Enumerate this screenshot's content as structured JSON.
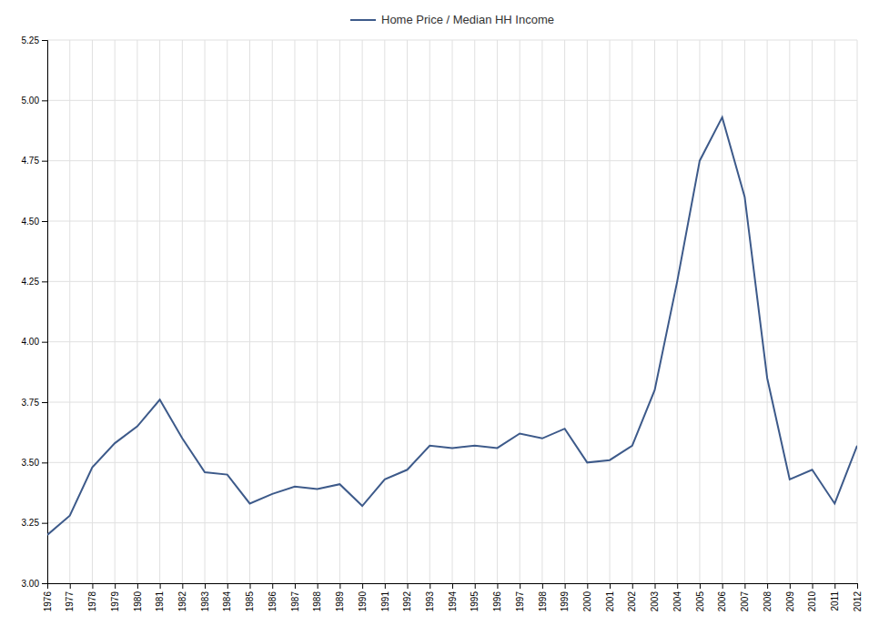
{
  "chart_data": {
    "type": "line",
    "x": [
      1976,
      1977,
      1978,
      1979,
      1980,
      1981,
      1982,
      1983,
      1984,
      1985,
      1986,
      1987,
      1988,
      1989,
      1990,
      1991,
      1992,
      1993,
      1994,
      1995,
      1996,
      1997,
      1998,
      1999,
      2000,
      2001,
      2002,
      2003,
      2004,
      2005,
      2006,
      2007,
      2008,
      2009,
      2010,
      2011,
      2012
    ],
    "series": [
      {
        "name": "Home Price / Median HH Income",
        "color": "#3d5a8a",
        "values": [
          3.2,
          3.28,
          3.48,
          3.58,
          3.65,
          3.76,
          3.6,
          3.46,
          3.45,
          3.33,
          3.37,
          3.4,
          3.39,
          3.41,
          3.32,
          3.43,
          3.47,
          3.57,
          3.56,
          3.57,
          3.56,
          3.62,
          3.6,
          3.64,
          3.5,
          3.51,
          3.57,
          3.8,
          4.25,
          4.75,
          4.93,
          4.6,
          3.85,
          3.43,
          3.47,
          3.33,
          3.57
        ]
      }
    ],
    "xlim": [
      1976,
      2012
    ],
    "ylim": [
      3.0,
      5.25
    ],
    "xticks": [
      1976,
      1977,
      1978,
      1979,
      1980,
      1981,
      1982,
      1983,
      1984,
      1985,
      1986,
      1987,
      1988,
      1989,
      1990,
      1991,
      1992,
      1993,
      1994,
      1995,
      1996,
      1997,
      1998,
      1999,
      2000,
      2001,
      2002,
      2003,
      2004,
      2005,
      2006,
      2007,
      2008,
      2009,
      2010,
      2011,
      2012
    ],
    "yticks": [
      {
        "value": 3.0,
        "label": "3.00"
      },
      {
        "value": 3.25,
        "label": "3.25"
      },
      {
        "value": 3.5,
        "label": "3.50"
      },
      {
        "value": 3.75,
        "label": "3.75"
      },
      {
        "value": 4.0,
        "label": "4.00"
      },
      {
        "value": 4.25,
        "label": "4.25"
      },
      {
        "value": 4.5,
        "label": "4.50"
      },
      {
        "value": 4.75,
        "label": "4.75"
      },
      {
        "value": 5.0,
        "label": "5.00"
      },
      {
        "value": 5.25,
        "label": "5.25"
      }
    ],
    "grid": true,
    "legend": "top"
  }
}
